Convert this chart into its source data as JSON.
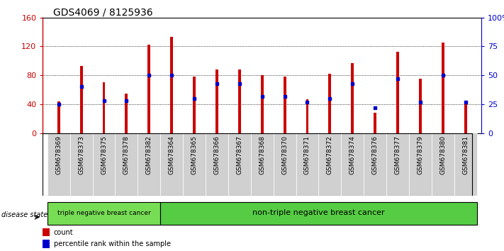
{
  "title": "GDS4069 / 8125936",
  "samples": [
    "GSM678369",
    "GSM678373",
    "GSM678375",
    "GSM678378",
    "GSM678382",
    "GSM678364",
    "GSM678365",
    "GSM678366",
    "GSM678367",
    "GSM678368",
    "GSM678370",
    "GSM678371",
    "GSM678372",
    "GSM678374",
    "GSM678376",
    "GSM678377",
    "GSM678379",
    "GSM678380",
    "GSM678381"
  ],
  "counts": [
    44,
    93,
    70,
    55,
    122,
    133,
    78,
    88,
    88,
    80,
    78,
    47,
    82,
    97,
    28,
    113,
    75,
    125,
    44
  ],
  "percentiles": [
    25,
    40,
    28,
    28,
    50,
    50,
    30,
    43,
    43,
    32,
    32,
    27,
    30,
    43,
    22,
    47,
    27,
    50,
    27
  ],
  "bar_color": "#cc0000",
  "percentile_color": "#0000cc",
  "ylim_left": [
    0,
    160
  ],
  "ylim_right": [
    0,
    100
  ],
  "yticks_left": [
    0,
    40,
    80,
    120,
    160
  ],
  "yticks_right": [
    0,
    25,
    50,
    75,
    100
  ],
  "ytick_labels_right": [
    "0",
    "25",
    "50",
    "75",
    "100%"
  ],
  "group1_label": "triple negative breast cancer",
  "group2_label": "non-triple negative breast cancer",
  "group1_count": 5,
  "group2_count": 14,
  "disease_state_label": "disease state",
  "legend_count_label": "count",
  "legend_percentile_label": "percentile rank within the sample",
  "group1_color": "#77dd55",
  "group2_color": "#55cc44",
  "title_fontsize": 10,
  "axis_color_left": "#cc0000",
  "axis_color_right": "#0000cc",
  "bar_width": 0.12,
  "tick_bg_color": "#d0d0d0",
  "plot_bg_color": "#ffffff",
  "fig_bg_color": "#ffffff"
}
